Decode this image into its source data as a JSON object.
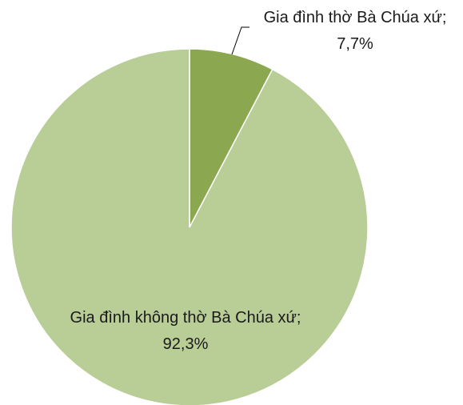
{
  "chart_data": {
    "type": "pie",
    "categories": [
      "Gia đình thờ Bà Chúa xứ",
      "Gia đình không thờ Bà Chúa xứ"
    ],
    "values": [
      7.7,
      92.3
    ],
    "value_labels": [
      "7,7%",
      "92,3%"
    ],
    "label_separator": "; ",
    "colors": [
      "#8ba851",
      "#b9cd96"
    ]
  }
}
